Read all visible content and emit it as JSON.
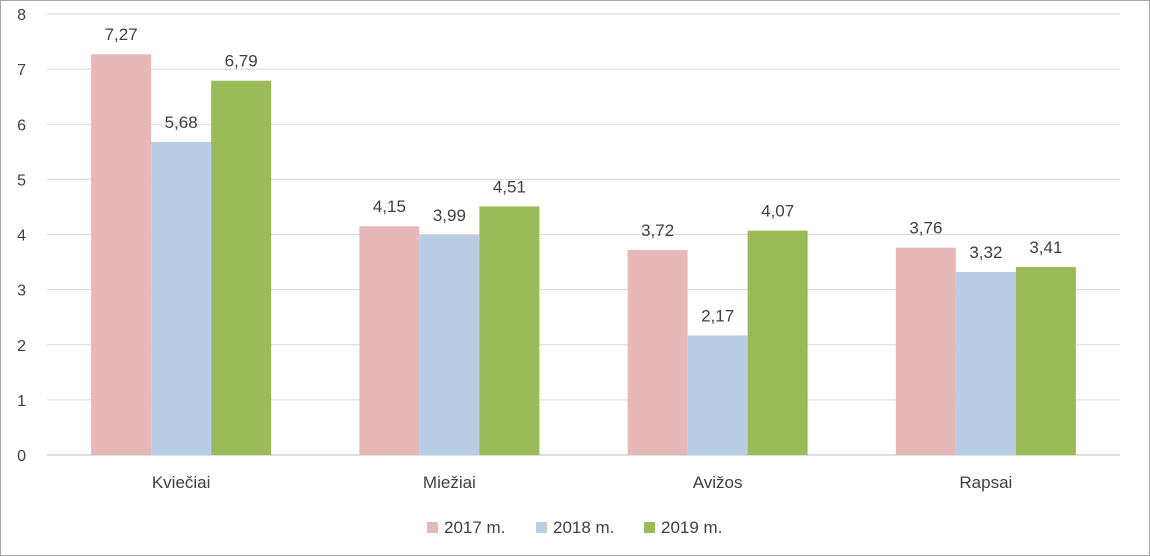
{
  "chart_data": {
    "type": "bar",
    "title": "",
    "xlabel": "",
    "ylabel": "",
    "categories": [
      "Kviečiai",
      "Miežiai",
      "Avižos",
      "Rapsai"
    ],
    "series": [
      {
        "name": "2017 m.",
        "color": "#e6b9b8",
        "values": [
          7.27,
          4.15,
          3.72,
          3.76
        ],
        "labels": [
          "7,27",
          "4,15",
          "3,72",
          "3,76"
        ]
      },
      {
        "name": "2018 m.",
        "color": "#b9cde5",
        "values": [
          5.68,
          3.99,
          2.17,
          3.32
        ],
        "labels": [
          "5,68",
          "3,99",
          "2,17",
          "3,32"
        ]
      },
      {
        "name": "2019 m.",
        "color": "#9bbb59",
        "values": [
          6.79,
          4.51,
          4.07,
          3.41
        ],
        "labels": [
          "6,79",
          "4,51",
          "4,07",
          "3,41"
        ]
      }
    ],
    "ylim": [
      0,
      8
    ],
    "yticks": [
      "0",
      "1",
      "2",
      "3",
      "4",
      "5",
      "6",
      "7",
      "8"
    ],
    "grid": true,
    "legend_position": "bottom"
  }
}
